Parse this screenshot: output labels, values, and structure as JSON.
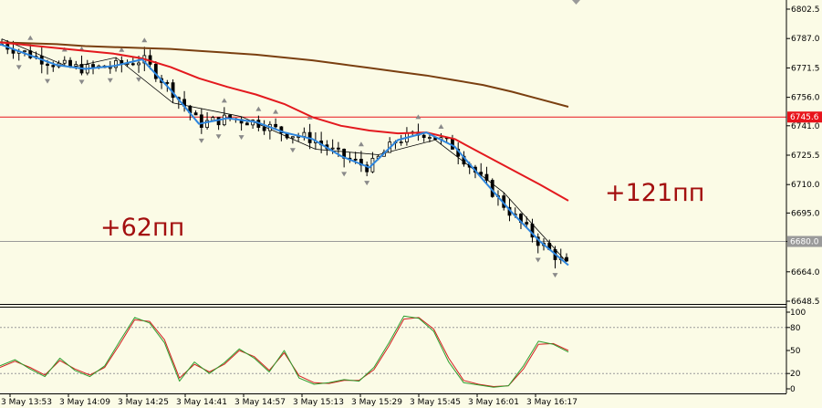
{
  "chart_data": {
    "type": "candlestick",
    "price_axis": {
      "min": 6648.5,
      "max": 6802.5,
      "ticks": [
        6802.5,
        6787.0,
        6771.5,
        6756.0,
        6741.0,
        6725.5,
        6710.0,
        6695.0,
        6680.0,
        6664.0,
        6648.5
      ],
      "ticks_display": [
        "6802.5",
        "6787.0",
        "6771.5",
        "6756.0",
        "6741.0",
        "6725.5",
        "6710.0",
        "6695.0",
        "6680.0",
        "6664.0",
        "6648.5"
      ]
    },
    "time_axis": {
      "labels": [
        "3 May 13:53",
        "3 May 14:09",
        "3 May 14:25",
        "3 May 14:41",
        "3 May 14:57",
        "3 May 15:13",
        "3 May 15:29",
        "3 May 15:45",
        "3 May 16:01",
        "3 May 16:17"
      ]
    },
    "horizontal_lines": [
      {
        "value": 6745.6,
        "label": "6745.6",
        "color": "#e8141c"
      },
      {
        "value": 6680.0,
        "label": "6680.0",
        "color": "#9a9a9a"
      }
    ],
    "moving_averages": [
      {
        "color": "#7a3f10",
        "values": [
          6785.0,
          6784.5,
          6784.0,
          6783.0,
          6782.5,
          6782.0,
          6781.5,
          6780.5,
          6779.5,
          6778.5,
          6777.0,
          6775.5,
          6773.5,
          6771.5,
          6769.5,
          6767.5,
          6765.0,
          6762.5,
          6759.0,
          6755.0,
          6751.0
        ]
      },
      {
        "color": "#e3191e",
        "values": [
          6785.0,
          6783.5,
          6782.0,
          6780.5,
          6779.0,
          6776.5,
          6772.0,
          6766.0,
          6761.5,
          6757.5,
          6752.5,
          6745.5,
          6741.0,
          6738.5,
          6737.0,
          6737.5,
          6734.0,
          6726.0,
          6718.0,
          6710.0,
          6701.5
        ]
      },
      {
        "color": "#2e86de",
        "values": [
          6784.0,
          6778.5,
          6773.0,
          6771.0,
          6772.5,
          6776.0,
          6760.0,
          6742.0,
          6745.0,
          6743.0,
          6737.5,
          6734.0,
          6725.0,
          6719.0,
          6733.5,
          6737.5,
          6730.0,
          6712.5,
          6695.5,
          6680.0,
          6667.5
        ]
      }
    ],
    "annotations": [
      {
        "text": "+62пп"
      },
      {
        "text": "+121пп"
      }
    ],
    "oscillator": {
      "ticks": [
        100,
        80,
        50,
        20,
        0
      ],
      "ticks_display": [
        "100",
        "80",
        "50",
        "20",
        "0"
      ],
      "levels": [
        80,
        20
      ],
      "main_values": [
        30,
        38,
        26,
        16,
        40,
        24,
        16,
        30,
        62,
        93,
        86,
        60,
        10,
        35,
        20,
        34,
        52,
        40,
        22,
        50,
        14,
        6,
        8,
        12,
        10,
        28,
        60,
        95,
        92,
        75,
        35,
        8,
        5,
        2,
        4,
        30,
        62,
        58,
        48
      ],
      "signal_values": [
        28,
        36,
        28,
        18,
        37,
        26,
        18,
        28,
        58,
        90,
        88,
        64,
        14,
        32,
        22,
        32,
        50,
        42,
        24,
        47,
        17,
        8,
        7,
        11,
        11,
        25,
        56,
        91,
        93,
        78,
        40,
        11,
        6,
        3,
        4,
        26,
        58,
        59,
        50
      ],
      "main_color": "#2e9e2e",
      "signal_color": "#d21e1e"
    }
  }
}
